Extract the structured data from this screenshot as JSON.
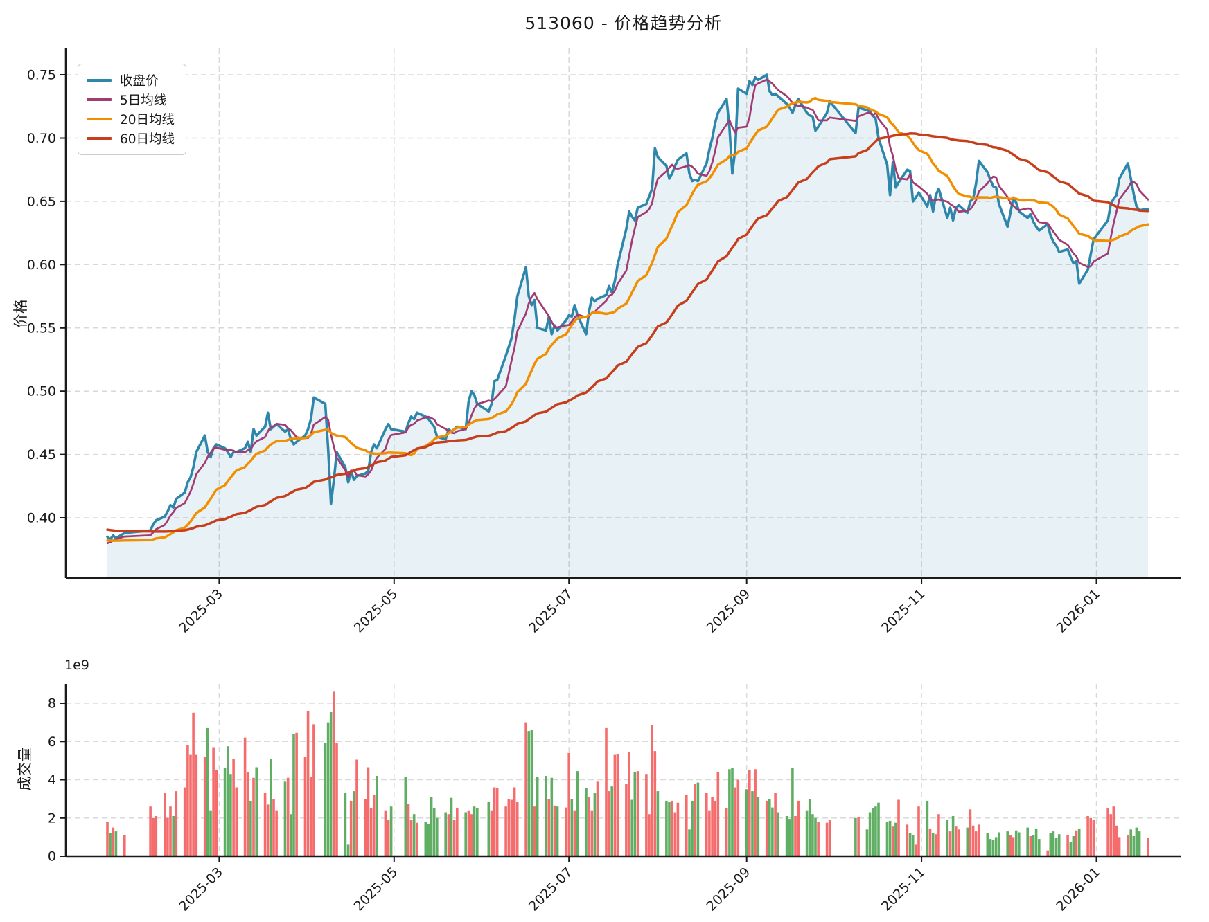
{
  "title": "513060 - 价格趋势分析",
  "price_chart": {
    "ylabel": "价格",
    "ytick_labels": [
      "0.40",
      "0.45",
      "0.50",
      "0.55",
      "0.60",
      "0.65",
      "0.70",
      "0.75"
    ],
    "legend": [
      {
        "label": "收盘价",
        "color": "#2E86AB"
      },
      {
        "label": "5日均线",
        "color": "#A23B72"
      },
      {
        "label": "20日均线",
        "color": "#F18F01"
      },
      {
        "label": "60日均线",
        "color": "#C73E1D"
      }
    ],
    "fill_color": "#2E86AB",
    "fill_opacity": 0.11
  },
  "volume_chart": {
    "ylabel": "成交量",
    "offset_label": "1e9",
    "ytick_values": [
      0,
      2,
      4,
      6,
      8
    ],
    "up_color": "#f56c6c",
    "down_color": "#5fae63"
  },
  "x_axis": {
    "tick_labels": [
      "2025-03",
      "2025-05",
      "2025-07",
      "2025-09",
      "2025-11",
      "2026-01"
    ],
    "tick_days": [
      39,
      100,
      161,
      223,
      284,
      345
    ]
  },
  "style": {
    "grid_color": "#d2d2d2",
    "spine_color": "#1a1a1a",
    "tick_text_color": "#1a1a1a"
  },
  "chart_data": [
    {
      "type": "line",
      "title": "513060 - 价格趋势分析",
      "ylabel": "价格",
      "ylim": [
        0.3524,
        0.7708
      ],
      "yticks": [
        0.4,
        0.45,
        0.5,
        0.55,
        0.6,
        0.65,
        0.7,
        0.75
      ],
      "x_tick_labels": [
        "2025-03",
        "2025-05",
        "2025-07",
        "2025-09",
        "2025-11",
        "2026-01"
      ],
      "x_tick_days": [
        39,
        100,
        161,
        223,
        284,
        345
      ],
      "start_date": "2025-01-21",
      "calendar": {
        "total_days": 364,
        "weekend_mods": [
          4,
          5
        ],
        "holiday_day_ranges": [
          [
            7,
            14
          ],
          [
            73,
            73
          ],
          [
            100,
            101
          ],
          [
            131,
            132
          ],
          [
            253,
            260
          ],
          [
            345,
            346
          ]
        ]
      },
      "legend_position": "upper left",
      "grid": true,
      "series": [
        {
          "name": "收盘价",
          "color": "#2E86AB",
          "width": 3.6,
          "kind": "close",
          "values": [
            0.385,
            0.383,
            0.386,
            0.384,
            0.388,
            0.39,
            0.395,
            0.398,
            0.401,
            0.405,
            0.41,
            0.408,
            0.415,
            0.42,
            0.428,
            0.432,
            0.44,
            0.452,
            0.465,
            0.452,
            0.448,
            0.455,
            0.458,
            0.455,
            0.452,
            0.448,
            0.452,
            0.452,
            0.455,
            0.46,
            0.452,
            0.47,
            0.465,
            0.472,
            0.483,
            0.47,
            0.472,
            0.474,
            0.468,
            0.47,
            0.462,
            0.458,
            0.46,
            0.465,
            0.47,
            0.478,
            0.495,
            0.49,
            0.455,
            0.411,
            0.43,
            0.452,
            0.44,
            0.428,
            0.437,
            0.43,
            0.433,
            0.435,
            0.437,
            0.452,
            0.458,
            0.455,
            0.47,
            0.474,
            0.47,
            0.468,
            0.475,
            0.48,
            0.478,
            0.483,
            0.48,
            0.478,
            0.475,
            0.472,
            0.464,
            0.462,
            0.47,
            0.468,
            0.47,
            0.472,
            0.47,
            0.492,
            0.5,
            0.497,
            0.49,
            0.484,
            0.49,
            0.508,
            0.509,
            0.528,
            0.535,
            0.542,
            0.557,
            0.575,
            0.598,
            0.575,
            0.568,
            0.572,
            0.55,
            0.548,
            0.559,
            0.545,
            0.552,
            0.548,
            0.556,
            0.56,
            0.559,
            0.568,
            0.56,
            0.545,
            0.563,
            0.574,
            0.571,
            0.573,
            0.576,
            0.583,
            0.578,
            0.587,
            0.6,
            0.628,
            0.642,
            0.638,
            0.635,
            0.645,
            0.648,
            0.654,
            0.66,
            0.692,
            0.685,
            0.678,
            0.668,
            0.672,
            0.678,
            0.683,
            0.688,
            0.672,
            0.666,
            0.667,
            0.666,
            0.68,
            0.691,
            0.7,
            0.712,
            0.72,
            0.731,
            0.708,
            0.672,
            0.691,
            0.739,
            0.735,
            0.745,
            0.742,
            0.748,
            0.746,
            0.75,
            0.737,
            0.734,
            0.735,
            0.733,
            0.727,
            0.724,
            0.72,
            0.726,
            0.731,
            0.72,
            0.718,
            0.717,
            0.706,
            0.709,
            0.72,
            0.729,
            0.704,
            0.724,
            0.722,
            0.721,
            0.718,
            0.715,
            0.7,
            0.679,
            0.655,
            0.681,
            0.661,
            0.665,
            0.675,
            0.674,
            0.65,
            0.653,
            0.657,
            0.646,
            0.655,
            0.642,
            0.655,
            0.66,
            0.637,
            0.645,
            0.635,
            0.645,
            0.647,
            0.641,
            0.65,
            0.652,
            0.664,
            0.682,
            0.673,
            0.667,
            0.662,
            0.661,
            0.648,
            0.63,
            0.641,
            0.653,
            0.649,
            0.642,
            0.637,
            0.64,
            0.634,
            0.63,
            0.627,
            0.632,
            0.623,
            0.618,
            0.615,
            0.61,
            0.612,
            0.606,
            0.601,
            0.603,
            0.585,
            0.596,
            0.608,
            0.62,
            0.635,
            0.648,
            0.652,
            0.655,
            0.668,
            0.68,
            0.668,
            0.656,
            0.646,
            0.643,
            0.644
          ],
          "prehistory": {
            "count": 60,
            "start": 0.404,
            "end": 0.378
          }
        },
        {
          "name": "5日均线",
          "color": "#A23B72",
          "width": 2.7,
          "kind": "ma",
          "window": 5
        },
        {
          "name": "20日均线",
          "color": "#F18F01",
          "width": 3.5,
          "kind": "ma",
          "window": 20
        },
        {
          "name": "60日均线",
          "color": "#C73E1D",
          "width": 3.5,
          "kind": "ma",
          "window": 60
        }
      ]
    },
    {
      "type": "bar",
      "ylabel": "成交量",
      "unit": 1000000000,
      "unit_label": "1e9",
      "ylim_e9": [
        0,
        9.01
      ],
      "yticks_e9": [
        0,
        2,
        4,
        6,
        8
      ],
      "color_rule": "red_if_close_up_else_green",
      "up_color": "#f56c6c",
      "down_color": "#5fae63",
      "values_e9": [
        1.8,
        1.2,
        1.5,
        1.3,
        1.1,
        2.6,
        2.0,
        2.1,
        3.3,
        2.0,
        2.6,
        2.1,
        3.4,
        3.6,
        5.8,
        5.3,
        7.5,
        5.3,
        5.2,
        6.7,
        2.4,
        5.7,
        4.5,
        4.6,
        5.75,
        4.3,
        5.1,
        3.6,
        6.2,
        4.4,
        2.9,
        4.1,
        4.65,
        3.3,
        2.7,
        5.1,
        3.0,
        2.4,
        3.9,
        4.1,
        2.2,
        6.4,
        6.45,
        5.2,
        7.6,
        4.15,
        6.9,
        5.9,
        7.0,
        7.55,
        8.6,
        5.9,
        3.3,
        0.6,
        2.9,
        3.4,
        5.05,
        3.0,
        4.65,
        2.5,
        3.2,
        4.2,
        2.4,
        1.9,
        2.6,
        4.15,
        2.75,
        1.9,
        2.2,
        1.75,
        1.8,
        1.7,
        3.1,
        2.5,
        2.0,
        2.3,
        2.2,
        3.05,
        1.9,
        2.5,
        2.3,
        2.4,
        2.2,
        2.6,
        2.5,
        2.85,
        2.4,
        3.6,
        3.55,
        2.6,
        3.0,
        2.95,
        3.6,
        2.85,
        7.0,
        6.55,
        6.6,
        2.6,
        4.15,
        4.2,
        3.0,
        4.1,
        2.65,
        2.6,
        2.55,
        5.4,
        3.0,
        2.4,
        4.45,
        3.55,
        3.1,
        2.4,
        3.3,
        3.9,
        6.7,
        3.4,
        3.65,
        5.3,
        5.35,
        3.8,
        5.45,
        2.95,
        4.4,
        4.45,
        4.3,
        2.2,
        6.85,
        5.5,
        3.4,
        2.9,
        2.85,
        2.9,
        2.3,
        2.8,
        3.2,
        1.4,
        2.9,
        3.8,
        3.85,
        3.3,
        2.4,
        3.1,
        2.9,
        4.4,
        2.5,
        4.55,
        4.6,
        3.6,
        4.0,
        3.5,
        4.5,
        3.4,
        4.55,
        3.1,
        2.9,
        3.0,
        2.55,
        3.3,
        2.3,
        2.1,
        1.95,
        4.6,
        2.1,
        2.9,
        2.4,
        3.0,
        2.2,
        2.0,
        1.8,
        1.75,
        1.9,
        2.0,
        2.05,
        1.4,
        2.3,
        2.5,
        2.6,
        2.8,
        1.8,
        1.85,
        1.55,
        1.75,
        2.95,
        1.65,
        1.2,
        1.1,
        0.6,
        2.6,
        2.9,
        1.45,
        1.2,
        1.15,
        2.2,
        1.9,
        1.3,
        2.1,
        1.55,
        1.4,
        1.5,
        2.45,
        1.6,
        1.3,
        1.65,
        1.2,
        0.9,
        0.85,
        1.0,
        1.25,
        1.3,
        1.1,
        1.0,
        1.35,
        1.25,
        1.5,
        1.05,
        1.1,
        1.45,
        0.9,
        0.3,
        1.2,
        1.3,
        0.95,
        1.15,
        1.1,
        0.75,
        1.05,
        1.35,
        1.45,
        2.1,
        2.0,
        1.9,
        2.5,
        2.2,
        2.6,
        1.6,
        1.0,
        1.1,
        1.4,
        1.05,
        1.5,
        1.3,
        0.95
      ]
    }
  ]
}
